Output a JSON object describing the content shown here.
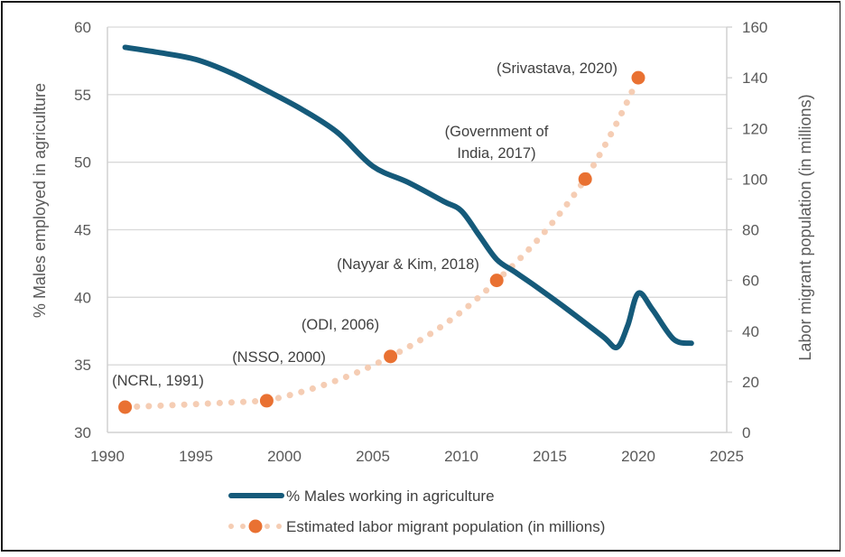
{
  "chart_data": {
    "type": "line",
    "title": "",
    "xlabel": "",
    "ylabel": "% Males employed in agriculture",
    "y2label": "Labor migrant population (in millions)",
    "xlim": [
      1990,
      2025
    ],
    "ylim": [
      30,
      60
    ],
    "y2lim": [
      0,
      160
    ],
    "x_ticks": [
      "1990",
      "1995",
      "2000",
      "2005",
      "2010",
      "2015",
      "2020",
      "2025"
    ],
    "x_tick_values": [
      1990,
      1995,
      2000,
      2005,
      2010,
      2015,
      2020,
      2025
    ],
    "y_ticks": [
      "30",
      "35",
      "40",
      "45",
      "50",
      "55",
      "60"
    ],
    "y_tick_values": [
      30,
      35,
      40,
      45,
      50,
      55,
      60
    ],
    "y2_ticks": [
      "0",
      "20",
      "40",
      "60",
      "80",
      "100",
      "120",
      "140",
      "160"
    ],
    "y2_tick_values": [
      0,
      20,
      40,
      60,
      80,
      100,
      120,
      140,
      160
    ],
    "grid": true,
    "legend_position": "bottom",
    "series": [
      {
        "name": "% Males working in agriculture",
        "axis": "left",
        "style": "solid-line",
        "color": "#155a7a",
        "x": [
          1991,
          1993,
          1995,
          1997,
          1999,
          2001,
          2003,
          2005,
          2007,
          2009,
          2010,
          2011,
          2012,
          2013,
          2014,
          2016,
          2018,
          2018.8,
          2019.4,
          2020,
          2020.8,
          2022,
          2023
        ],
        "values": [
          58.5,
          58.1,
          57.6,
          56.6,
          55.3,
          53.9,
          52.2,
          49.7,
          48.5,
          47.1,
          46.4,
          44.6,
          42.8,
          41.9,
          41.0,
          39.1,
          37.1,
          36.3,
          37.9,
          40.3,
          39.1,
          36.9,
          36.6
        ]
      },
      {
        "name": "Estimated labor migrant population (in millions)",
        "axis": "right",
        "style": "dotted-line-with-markers",
        "color": "#e97132",
        "trend_color": "#f5cdb4",
        "x": [
          1991,
          1999,
          2006,
          2012,
          2017,
          2020
        ],
        "values": [
          10,
          12.5,
          30,
          60,
          100,
          140
        ],
        "labels": [
          "(NCRL, 1991)",
          "(NSSO, 2000)",
          "(ODI, 2006)",
          "(Nayyar & Kim, 2018)",
          "(Government of India, 2017)",
          "(Srivastava, 2020)"
        ]
      }
    ],
    "annotations": [
      {
        "lines": [
          "(NCRL, 1991)"
        ]
      },
      {
        "lines": [
          "(NSSO, 2000)"
        ]
      },
      {
        "lines": [
          "(ODI, 2006)"
        ]
      },
      {
        "lines": [
          "(Nayyar & Kim, 2018)"
        ]
      },
      {
        "lines": [
          "(Government of",
          "India, 2017)"
        ]
      },
      {
        "lines": [
          "(Srivastava, 2020)"
        ]
      }
    ]
  }
}
